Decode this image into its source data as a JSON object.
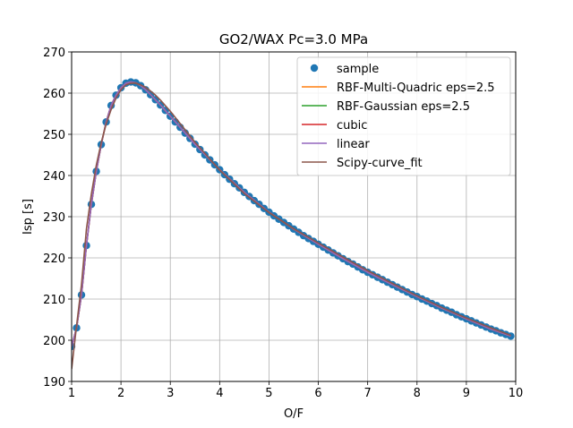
{
  "chart_data": {
    "type": "line",
    "title": "GO2/WAX Pc=3.0 MPa",
    "xlabel": "O/F",
    "ylabel": "Isp [s]",
    "xlim": [
      1,
      10
    ],
    "ylim": [
      190,
      270
    ],
    "xticks": [
      1,
      2,
      3,
      4,
      5,
      6,
      7,
      8,
      9,
      10
    ],
    "yticks": [
      190,
      200,
      210,
      220,
      230,
      240,
      250,
      260,
      270
    ],
    "xtick_labels": [
      "1",
      "2",
      "3",
      "4",
      "5",
      "6",
      "7",
      "8",
      "9",
      "10"
    ],
    "ytick_labels": [
      "190",
      "200",
      "210",
      "220",
      "230",
      "240",
      "250",
      "260",
      "270"
    ],
    "grid": true,
    "legend_position": "top-right",
    "series": [
      {
        "name": "sample",
        "kind": "markers",
        "color": "#1f77b4",
        "x": [
          1.0,
          1.1,
          1.2,
          1.3,
          1.4,
          1.5,
          1.6,
          1.7,
          1.8,
          1.9,
          2.0,
          2.1,
          2.2,
          2.3,
          2.4,
          2.5,
          2.6,
          2.7,
          2.8,
          2.9,
          3.0,
          3.1,
          3.2,
          3.3,
          3.4,
          3.5,
          3.6,
          3.7,
          3.8,
          3.9,
          4.0,
          4.1,
          4.2,
          4.3,
          4.4,
          4.5,
          4.6,
          4.7,
          4.8,
          4.9,
          5.0,
          5.1,
          5.2,
          5.3,
          5.4,
          5.5,
          5.6,
          5.7,
          5.8,
          5.9,
          6.0,
          6.1,
          6.2,
          6.3,
          6.4,
          6.5,
          6.6,
          6.7,
          6.8,
          6.9,
          7.0,
          7.1,
          7.2,
          7.3,
          7.4,
          7.5,
          7.6,
          7.7,
          7.8,
          7.9,
          8.0,
          8.1,
          8.2,
          8.3,
          8.4,
          8.5,
          8.6,
          8.7,
          8.8,
          8.9,
          9.0,
          9.1,
          9.2,
          9.3,
          9.4,
          9.5,
          9.6,
          9.7,
          9.8,
          9.9
        ],
        "y": [
          198.5,
          203.0,
          211.0,
          223.0,
          233.0,
          241.0,
          247.5,
          253.0,
          257.0,
          259.5,
          261.3,
          262.4,
          262.7,
          262.5,
          261.8,
          260.8,
          259.6,
          258.4,
          257.1,
          255.8,
          254.4,
          253.0,
          251.7,
          250.3,
          249.0,
          247.6,
          246.3,
          245.0,
          243.8,
          242.6,
          241.4,
          240.2,
          239.1,
          238.0,
          237.0,
          235.9,
          234.9,
          233.9,
          233.0,
          232.0,
          231.1,
          230.2,
          229.4,
          228.6,
          227.8,
          227.0,
          226.2,
          225.4,
          224.7,
          224.0,
          223.3,
          222.6,
          221.9,
          221.2,
          220.5,
          219.8,
          219.1,
          218.5,
          217.8,
          217.1,
          216.5,
          215.9,
          215.3,
          214.7,
          214.1,
          213.5,
          212.9,
          212.3,
          211.7,
          211.1,
          210.6,
          210.0,
          209.5,
          208.9,
          208.4,
          207.8,
          207.3,
          206.8,
          206.2,
          205.7,
          205.2,
          204.7,
          204.2,
          203.7,
          203.2,
          202.7,
          202.3,
          201.8,
          201.4,
          201.0
        ]
      },
      {
        "name": "RBF-Multi-Quadric eps=2.5",
        "kind": "line",
        "color": "#ff7f0e",
        "x": [
          1.0,
          1.1,
          1.2,
          1.3,
          1.4,
          1.5,
          1.6,
          1.7,
          1.8,
          1.9,
          2.0,
          2.1,
          2.2,
          2.3,
          2.4,
          2.5,
          2.6,
          2.8,
          3.0,
          3.2,
          3.5,
          4.0,
          4.5,
          5.0,
          5.5,
          6.0,
          6.5,
          7.0,
          7.5,
          8.0,
          8.5,
          9.0,
          9.5,
          9.9
        ],
        "y": [
          198.5,
          203.0,
          211.0,
          223.0,
          233.0,
          241.0,
          247.5,
          253.0,
          257.0,
          259.5,
          261.3,
          262.4,
          262.7,
          262.5,
          261.8,
          260.8,
          259.6,
          257.1,
          254.4,
          251.7,
          247.6,
          241.4,
          235.9,
          231.1,
          227.0,
          223.3,
          219.8,
          216.5,
          213.5,
          210.6,
          207.8,
          205.2,
          202.7,
          201.0
        ]
      },
      {
        "name": "RBF-Gaussian eps=2.5",
        "kind": "line",
        "color": "#2ca02c",
        "x": [
          1.0,
          1.1,
          1.2,
          1.3,
          1.4,
          1.5,
          1.6,
          1.7,
          1.8,
          1.9,
          2.0,
          2.1,
          2.2,
          2.3,
          2.4,
          2.5,
          2.6,
          2.8,
          3.0,
          3.2,
          3.5,
          4.0,
          4.5,
          5.0,
          5.5,
          6.0,
          6.5,
          7.0,
          7.5,
          8.0,
          8.5,
          9.0,
          9.5,
          9.9
        ],
        "y": [
          198.5,
          203.0,
          211.0,
          223.0,
          233.0,
          241.0,
          247.5,
          253.0,
          257.0,
          259.5,
          261.3,
          262.4,
          262.7,
          262.5,
          261.8,
          260.8,
          259.6,
          257.1,
          254.4,
          251.7,
          247.6,
          241.4,
          235.9,
          231.1,
          227.0,
          223.3,
          219.8,
          216.5,
          213.5,
          210.6,
          207.8,
          205.2,
          202.7,
          201.0
        ]
      },
      {
        "name": "cubic",
        "kind": "line",
        "color": "#d62728",
        "x": [
          1.0,
          1.1,
          1.2,
          1.3,
          1.4,
          1.5,
          1.6,
          1.7,
          1.8,
          1.9,
          2.0,
          2.1,
          2.2,
          2.3,
          2.4,
          2.5,
          2.6,
          2.8,
          3.0,
          3.2,
          3.5,
          4.0,
          4.5,
          5.0,
          5.5,
          6.0,
          6.5,
          7.0,
          7.5,
          8.0,
          8.5,
          9.0,
          9.5,
          9.9
        ],
        "y": [
          198.5,
          203.0,
          211.0,
          223.0,
          233.0,
          241.0,
          247.5,
          253.0,
          257.0,
          259.5,
          261.3,
          262.4,
          262.7,
          262.5,
          261.8,
          260.8,
          259.6,
          257.1,
          254.4,
          251.7,
          247.6,
          241.4,
          235.9,
          231.1,
          227.0,
          223.3,
          219.8,
          216.5,
          213.5,
          210.6,
          207.8,
          205.2,
          202.7,
          201.0
        ]
      },
      {
        "name": "linear",
        "kind": "line",
        "color": "#9467bd",
        "x": [
          1.0,
          1.1,
          1.2,
          1.3,
          1.4,
          1.5,
          1.6,
          1.7,
          1.8,
          1.9,
          2.0,
          2.1,
          2.2,
          2.3,
          2.4,
          2.5,
          2.6,
          2.8,
          3.0,
          3.2,
          3.5,
          4.0,
          4.5,
          5.0,
          5.5,
          6.0,
          6.5,
          7.0,
          7.5,
          8.0,
          8.5,
          9.0,
          9.5,
          9.9
        ],
        "y": [
          198.5,
          203.0,
          211.0,
          223.0,
          233.0,
          241.0,
          247.5,
          253.0,
          257.0,
          259.5,
          261.3,
          262.4,
          262.7,
          262.5,
          261.8,
          260.8,
          259.6,
          257.1,
          254.4,
          251.7,
          247.6,
          241.4,
          235.9,
          231.1,
          227.0,
          223.3,
          219.8,
          216.5,
          213.5,
          210.6,
          207.8,
          205.2,
          202.7,
          201.0
        ]
      },
      {
        "name": "Scipy-curve_fit",
        "kind": "line",
        "color": "#8c564b",
        "x": [
          1.0,
          1.1,
          1.2,
          1.3,
          1.4,
          1.5,
          1.6,
          1.7,
          1.8,
          1.9,
          2.0,
          2.1,
          2.2,
          2.3,
          2.4,
          2.5,
          2.6,
          2.7,
          2.8,
          3.0,
          3.2,
          3.5,
          4.0,
          4.5,
          5.0,
          5.5,
          6.0,
          6.5,
          7.0,
          7.5,
          8.0,
          8.5,
          9.0,
          9.5,
          9.9
        ],
        "y": [
          193.0,
          203.5,
          213.5,
          227.0,
          235.5,
          242.5,
          248.0,
          252.5,
          256.0,
          258.8,
          260.8,
          262.0,
          262.4,
          262.4,
          262.0,
          261.4,
          260.5,
          259.5,
          258.3,
          255.6,
          252.6,
          248.1,
          241.3,
          235.6,
          231.0,
          227.1,
          223.6,
          220.2,
          216.9,
          213.8,
          210.8,
          208.0,
          205.4,
          203.0,
          201.2
        ]
      }
    ]
  }
}
